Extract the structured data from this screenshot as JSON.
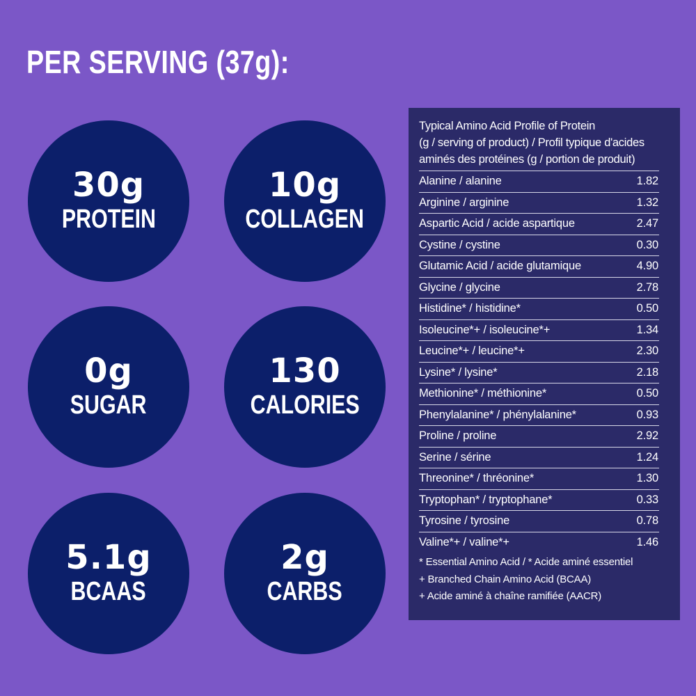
{
  "heading": "PER SERVING (37g):",
  "stats": [
    {
      "value": "30g",
      "label": "PROTEIN"
    },
    {
      "value": "10g",
      "label": "COLLAGEN"
    },
    {
      "value": "0g",
      "label": "SUGAR"
    },
    {
      "value": "130",
      "label": "CALORIES"
    },
    {
      "value": "5.1g",
      "label": "BCAAS"
    },
    {
      "value": "2g",
      "label": "CARBS"
    }
  ],
  "colors": {
    "background": "#7b57c7",
    "circle": "#0c1f6a",
    "panel": "#2b2a68",
    "text": "#ffffff"
  },
  "amino_table": {
    "title_lines": [
      "Typical Amino Acid Profile of Protein",
      "(g / serving of product) / Profil typique d'acides",
      "aminés des protéines (g / portion de produit)"
    ],
    "rows": [
      {
        "name": "Alanine / alanine",
        "value": "1.82"
      },
      {
        "name": "Arginine / arginine",
        "value": "1.32"
      },
      {
        "name": "Aspartic Acid / acide aspartique",
        "value": "2.47"
      },
      {
        "name": "Cystine / cystine",
        "value": "0.30"
      },
      {
        "name": "Glutamic Acid / acide glutamique",
        "value": "4.90"
      },
      {
        "name": "Glycine / glycine",
        "value": "2.78"
      },
      {
        "name": "Histidine* / histidine*",
        "value": "0.50"
      },
      {
        "name": "Isoleucine*+ / isoleucine*+",
        "value": "1.34"
      },
      {
        "name": "Leucine*+ / leucine*+",
        "value": "2.30"
      },
      {
        "name": "Lysine* / lysine*",
        "value": "2.18"
      },
      {
        "name": "Methionine* / méthionine*",
        "value": "0.50"
      },
      {
        "name": "Phenylalanine* / phénylalanine*",
        "value": "0.93"
      },
      {
        "name": "Proline / proline",
        "value": "2.92"
      },
      {
        "name": "Serine / sérine",
        "value": "1.24"
      },
      {
        "name": "Threonine* / thréonine*",
        "value": "1.30"
      },
      {
        "name": "Tryptophan* / tryptophane*",
        "value": "0.33"
      },
      {
        "name": "Tyrosine / tyrosine",
        "value": "0.78"
      },
      {
        "name": "Valine*+ / valine*+",
        "value": "1.46"
      }
    ],
    "footnotes": [
      "* Essential Amino Acid / * Acide aminé essentiel",
      "+ Branched Chain Amino Acid (BCAA)",
      "+ Acide aminé à chaîne ramifiée (AACR)"
    ]
  }
}
